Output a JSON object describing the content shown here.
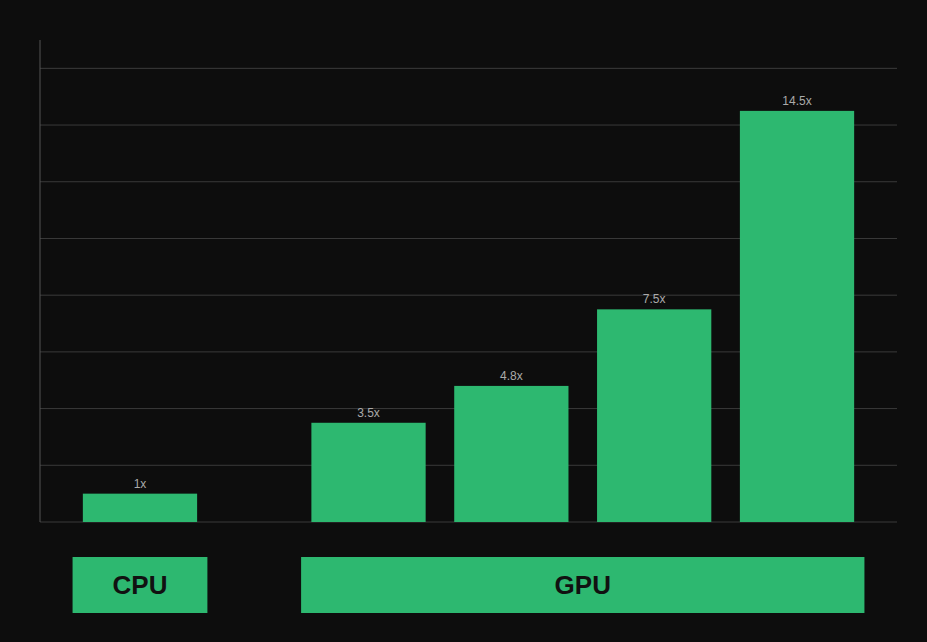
{
  "chart_data": {
    "type": "bar",
    "values": [
      1.0,
      3.5,
      4.8,
      7.5,
      14.5
    ],
    "value_labels": [
      "1x",
      "3.5x",
      "4.8x",
      "7.5x",
      "14.5x"
    ],
    "data_labels": true,
    "color": "#2db870",
    "ylim": [
      0,
      17
    ],
    "yticks": [
      0,
      2,
      4,
      6,
      8,
      10,
      12,
      14,
      16
    ],
    "grid": true,
    "tick_labels": false,
    "annotations": [
      "CPU",
      "GPU"
    ]
  }
}
